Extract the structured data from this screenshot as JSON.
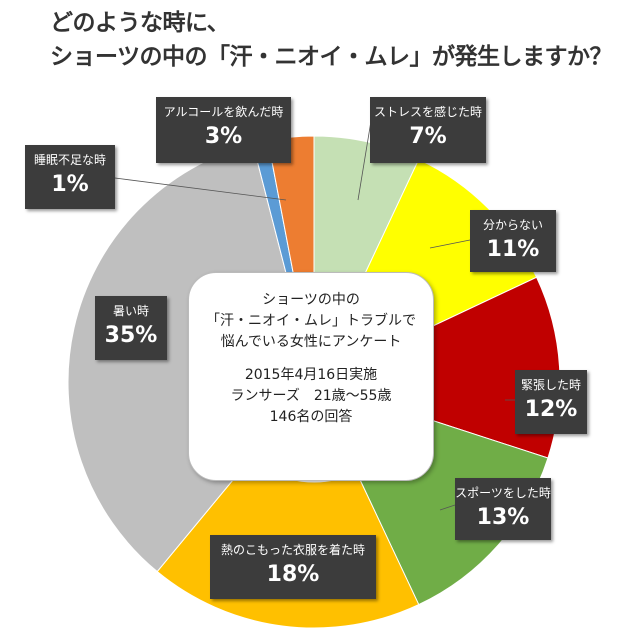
{
  "title_lines": [
    "どのような時に、",
    "ショーツの中の「汗・ニオイ・ムレ」が発生しますか？"
  ],
  "center_box": {
    "lines_a": [
      "ショーツの中の",
      "「汗・ニオイ・ムレ」トラブルで",
      "悩んでいる女性にアンケート"
    ],
    "lines_b": [
      "2015年4月16日実施",
      "ランサーズ　21歳～55歳",
      "146名の回答"
    ]
  },
  "chart_data": {
    "type": "pie",
    "style": "donut",
    "start": "12 o'clock",
    "direction": "clockwise",
    "unit": "%",
    "categories": [
      "ストレスを感じた時",
      "分からない",
      "緊張した時",
      "スポーツをした時",
      "熱のこもった衣服を着た時",
      "暑い時",
      "睡眠不足な時",
      "アルコールを飲んだ時"
    ],
    "values": [
      7,
      11,
      12,
      13,
      18,
      35,
      1,
      3
    ],
    "labels": [
      "7%",
      "11%",
      "12%",
      "13%",
      "18%",
      "35%",
      "1%",
      "3%"
    ],
    "colors": [
      "#c5e0b4",
      "#ffff00",
      "#c00000",
      "#70ad47",
      "#ffc000",
      "#bfbfbf",
      "#5b9bd5",
      "#ed7d31"
    ]
  }
}
